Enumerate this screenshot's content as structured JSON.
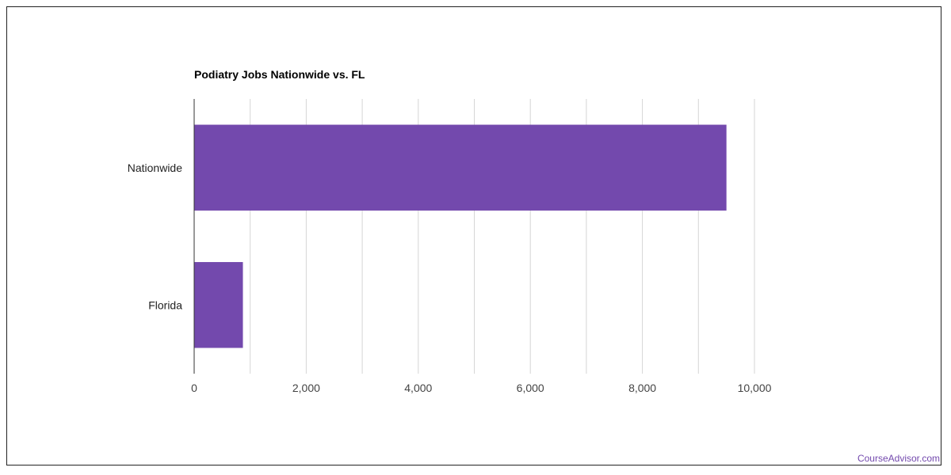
{
  "chart_data": {
    "type": "bar",
    "orientation": "horizontal",
    "title": "Podiatry Jobs Nationwide vs. FL",
    "categories": [
      "Nationwide",
      "Florida"
    ],
    "values": [
      9500,
      870
    ],
    "xlim": [
      0,
      10000
    ],
    "x_ticks": [
      0,
      2000,
      4000,
      6000,
      8000,
      10000
    ],
    "x_tick_labels": [
      "0",
      "2,000",
      "4,000",
      "6,000",
      "8,000",
      "10,000"
    ],
    "xlabel": "",
    "ylabel": "",
    "grid": true,
    "bar_color": "#7349ad"
  },
  "watermark": "CourseAdvisor.com"
}
